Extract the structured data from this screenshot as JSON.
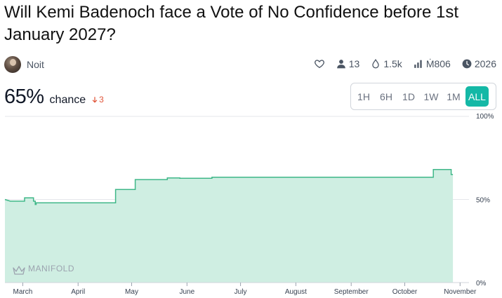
{
  "market": {
    "title": "Will Kemi Badenoch face a Vote of No Confidence before 1st January 2027?",
    "author": "Noit",
    "stats": {
      "traders": "13",
      "liquidity": "1.5k",
      "volume": "Ṁ806",
      "close": "2026"
    },
    "probability": "65%",
    "probability_label": "chance",
    "change": "3"
  },
  "range_buttons": [
    "1H",
    "6H",
    "1D",
    "1W",
    "1M",
    "ALL"
  ],
  "active_range": "ALL",
  "chart_data": {
    "type": "area",
    "ylim": [
      0,
      100
    ],
    "y_ticks": [
      "100%",
      "50%",
      "0%"
    ],
    "x_ticks": [
      "March",
      "April",
      "May",
      "June",
      "July",
      "August",
      "September",
      "October",
      "November"
    ],
    "watermark": "MANIFOLD",
    "x_span_days": 260,
    "series": [
      {
        "points": [
          [
            0,
            50
          ],
          [
            3,
            49
          ],
          [
            11,
            49
          ],
          [
            11,
            51
          ],
          [
            16,
            51
          ],
          [
            16,
            49
          ],
          [
            17,
            49
          ],
          [
            17,
            47
          ],
          [
            17.5,
            47
          ],
          [
            17.5,
            48
          ],
          [
            62,
            48
          ],
          [
            62,
            56
          ],
          [
            73,
            56
          ],
          [
            73,
            62
          ],
          [
            91,
            62
          ],
          [
            91,
            63
          ],
          [
            98,
            63
          ],
          [
            98,
            62.8
          ],
          [
            116,
            62.8
          ],
          [
            116,
            63.4
          ],
          [
            240,
            63.4
          ],
          [
            240,
            68
          ],
          [
            250,
            68
          ],
          [
            250,
            65
          ],
          [
            251,
            65
          ]
        ]
      }
    ],
    "line_color": "#3fb788",
    "fill_color": "#cfeee2"
  }
}
